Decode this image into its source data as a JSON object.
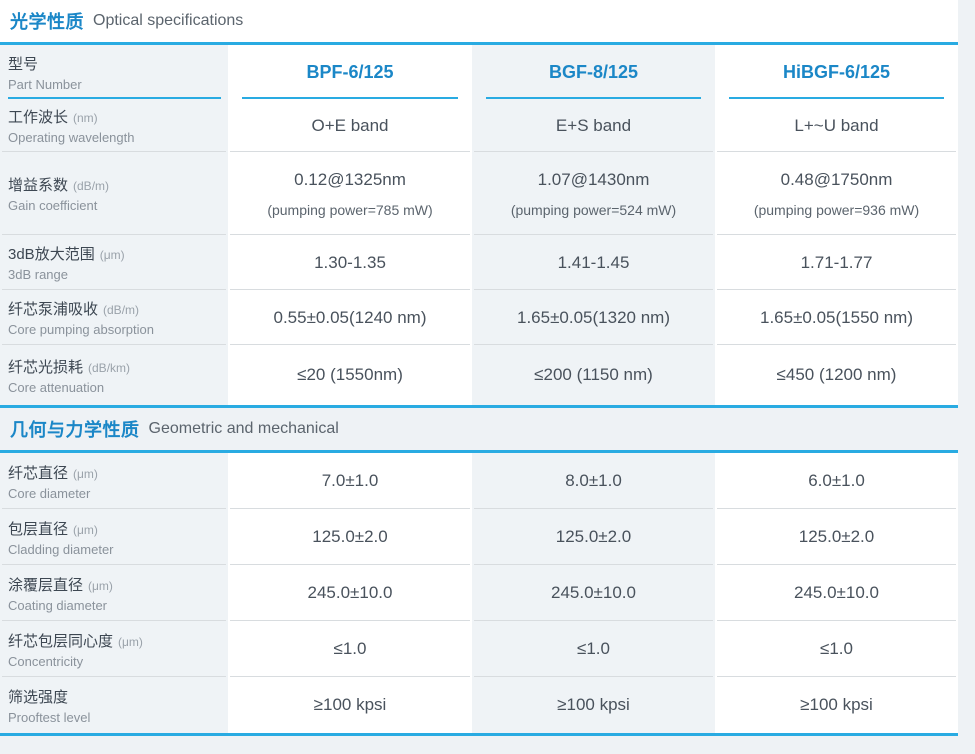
{
  "colors": {
    "accent_line": "#29abe2",
    "heading_blue": "#1b87c7",
    "value_text": "#49525c",
    "label_zh_text": "#3d4752",
    "label_en_text": "#8a929b",
    "light_column_bg": "#eff3f6",
    "white_column_bg": "#ffffff",
    "row_separator": "#d8dcdf"
  },
  "optical": {
    "title_zh": "光学性质",
    "title_en": "Optical specifications",
    "header": {
      "label_zh": "型号",
      "label_en": "Part Number",
      "columns": [
        "BPF-6/125",
        "BGF-8/125",
        "HiBGF-6/125"
      ]
    },
    "rows": [
      {
        "zh": "工作波长",
        "unit": "(nm)",
        "en": "Operating wavelength",
        "values": [
          "O+E band",
          "E+S band",
          "L+~U band"
        ]
      },
      {
        "zh": "增益系数",
        "unit": "(dB/m)",
        "en": "Gain coefficient",
        "values": [
          "0.12@1325nm",
          "1.07@1430nm",
          "0.48@1750nm"
        ],
        "subvalues": [
          "(pumping power=785 mW)",
          "(pumping power=524 mW)",
          "(pumping power=936 mW)"
        ]
      },
      {
        "zh": "3dB放大范围",
        "unit": "(μm)",
        "en": "3dB range",
        "values": [
          "1.30-1.35",
          "1.41-1.45",
          "1.71-1.77"
        ]
      },
      {
        "zh": "纤芯泵浦吸收",
        "unit": "(dB/m)",
        "en": "Core pumping absorption",
        "values": [
          "0.55±0.05(1240 nm)",
          "1.65±0.05(1320 nm)",
          "1.65±0.05(1550 nm)"
        ]
      },
      {
        "zh": "纤芯光损耗",
        "unit": "(dB/km)",
        "en": "Core attenuation",
        "values": [
          "≤20 (1550nm)",
          "≤200 (1150 nm)",
          "≤450 (1200 nm)"
        ]
      }
    ]
  },
  "geometric": {
    "title_zh": "几何与力学性质",
    "title_en": "Geometric and mechanical",
    "rows": [
      {
        "zh": "纤芯直径",
        "unit": "(μm)",
        "en": "Core diameter",
        "values": [
          "7.0±1.0",
          "8.0±1.0",
          "6.0±1.0"
        ]
      },
      {
        "zh": "包层直径",
        "unit": "(μm)",
        "en": "Cladding diameter",
        "values": [
          "125.0±2.0",
          "125.0±2.0",
          "125.0±2.0"
        ]
      },
      {
        "zh": "涂覆层直径",
        "unit": "(μm)",
        "en": "Coating diameter",
        "values": [
          "245.0±10.0",
          "245.0±10.0",
          "245.0±10.0"
        ]
      },
      {
        "zh": "纤芯包层同心度",
        "unit": "(μm)",
        "en": "Concentricity",
        "values": [
          "≤1.0",
          "≤1.0",
          "≤1.0"
        ]
      },
      {
        "zh": "筛选强度",
        "unit": "",
        "en": "Prooftest level",
        "values": [
          "≥100 kpsi",
          "≥100 kpsi",
          "≥100 kpsi"
        ]
      }
    ]
  }
}
